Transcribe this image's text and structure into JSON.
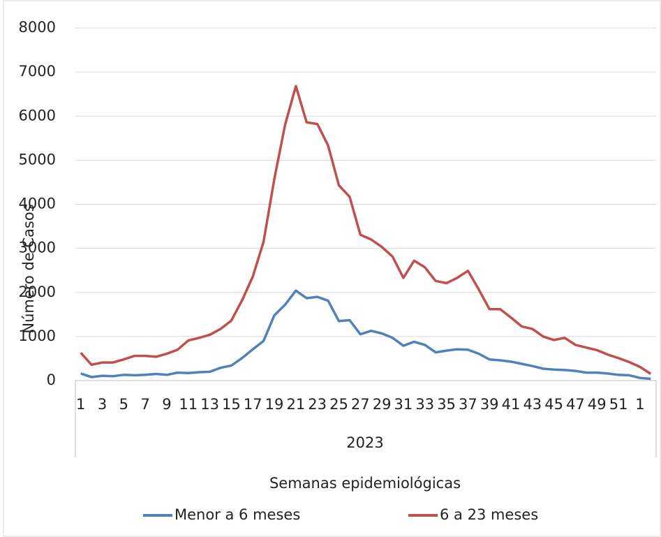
{
  "chart_data": {
    "type": "line",
    "y_label": "Número de Casos",
    "x_label": "Semanas epidemiológicas",
    "x_group_label": "2023",
    "categories": [
      1,
      null,
      3,
      null,
      5,
      null,
      7,
      null,
      9,
      null,
      11,
      null,
      13,
      null,
      15,
      null,
      17,
      null,
      19,
      null,
      21,
      null,
      23,
      null,
      25,
      null,
      27,
      null,
      29,
      null,
      31,
      null,
      33,
      null,
      35,
      null,
      37,
      null,
      39,
      null,
      41,
      null,
      43,
      null,
      45,
      null,
      47,
      null,
      49,
      null,
      51,
      null,
      1,
      null
    ],
    "series": [
      {
        "name": "Menor a 6 meses",
        "color": "#4f81bd",
        "values": [
          160,
          80,
          110,
          100,
          130,
          120,
          130,
          150,
          130,
          180,
          170,
          190,
          200,
          290,
          340,
          510,
          710,
          900,
          1480,
          1720,
          2040,
          1870,
          1900,
          1810,
          1350,
          1370,
          1050,
          1130,
          1070,
          970,
          790,
          880,
          810,
          640,
          680,
          710,
          700,
          610,
          480,
          460,
          430,
          380,
          330,
          270,
          250,
          240,
          220,
          180,
          180,
          160,
          130,
          120,
          60,
          40
        ]
      },
      {
        "name": "6 a 23 meses",
        "color": "#c0504d",
        "values": [
          630,
          360,
          410,
          410,
          480,
          560,
          560,
          540,
          610,
          700,
          910,
          970,
          1040,
          1170,
          1360,
          1820,
          2360,
          3150,
          4570,
          5800,
          6680,
          5860,
          5820,
          5330,
          4430,
          4170,
          3310,
          3200,
          3030,
          2810,
          2330,
          2720,
          2570,
          2260,
          2210,
          2330,
          2490,
          2070,
          1620,
          1620,
          1430,
          1230,
          1170,
          1000,
          920,
          970,
          810,
          750,
          690,
          590,
          510,
          420,
          310,
          150
        ]
      }
    ],
    "ylim": [
      0,
      8000
    ],
    "yticks": [
      0,
      1000,
      2000,
      3000,
      4000,
      5000,
      6000,
      7000,
      8000
    ],
    "grid": true,
    "legend": "bottom"
  }
}
